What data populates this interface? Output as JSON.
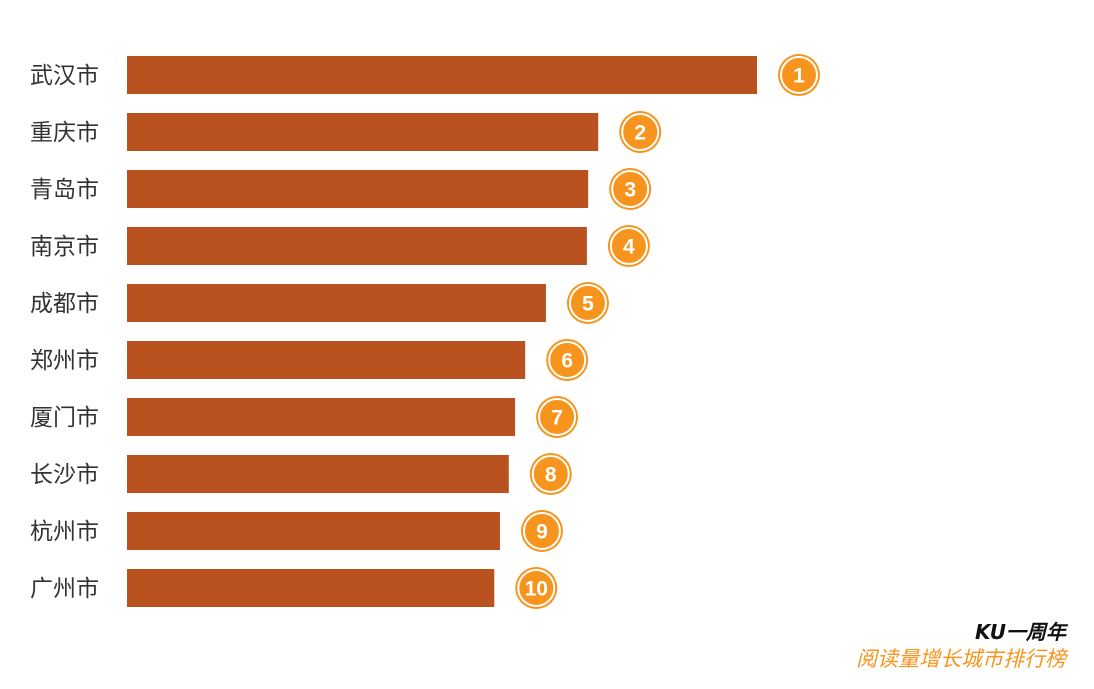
{
  "chart_data": {
    "type": "bar",
    "orientation": "horizontal",
    "title": "KU一周年",
    "subtitle": "阅读量增长城市排行榜",
    "categories": [
      "武汉市",
      "重庆市",
      "青岛市",
      "南京市",
      "成都市",
      "郑州市",
      "厦门市",
      "长沙市",
      "杭州市",
      "广州市"
    ],
    "values": [
      100,
      74.8,
      73.2,
      73.0,
      66.5,
      63.2,
      61.6,
      60.6,
      59.2,
      58.3
    ],
    "value_unit": "relative (estimated, no axis shown)",
    "ranks": [
      "1",
      "2",
      "3",
      "4",
      "5",
      "6",
      "7",
      "8",
      "9",
      "10"
    ],
    "xlim": [
      0,
      100
    ],
    "grid": false,
    "legend": "none",
    "colors": {
      "bar": "#b9521e",
      "badge": "#f7941d",
      "subtitle": "#f7941d"
    }
  }
}
